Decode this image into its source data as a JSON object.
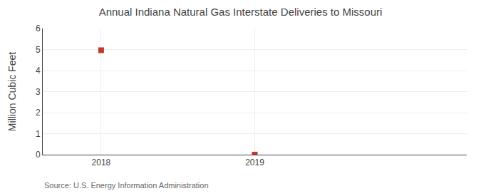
{
  "chart_data": {
    "type": "scatter",
    "title": "Annual Indiana Natural Gas Interstate Deliveries to Missouri",
    "ylabel": "Million Cubic Feet",
    "annotations": [
      "Source: U.S. Energy Information Administration"
    ],
    "x": [
      2018,
      2019
    ],
    "values": [
      4.967,
      0.003
    ],
    "color": "#c0392b",
    "marker": "square",
    "xlim": [
      2017.62,
      2020.38
    ],
    "xticks": [
      2018,
      2019
    ],
    "ylim": [
      0,
      6
    ],
    "yticks": [
      0,
      1,
      2,
      3,
      4,
      5,
      6
    ],
    "grid": true
  }
}
